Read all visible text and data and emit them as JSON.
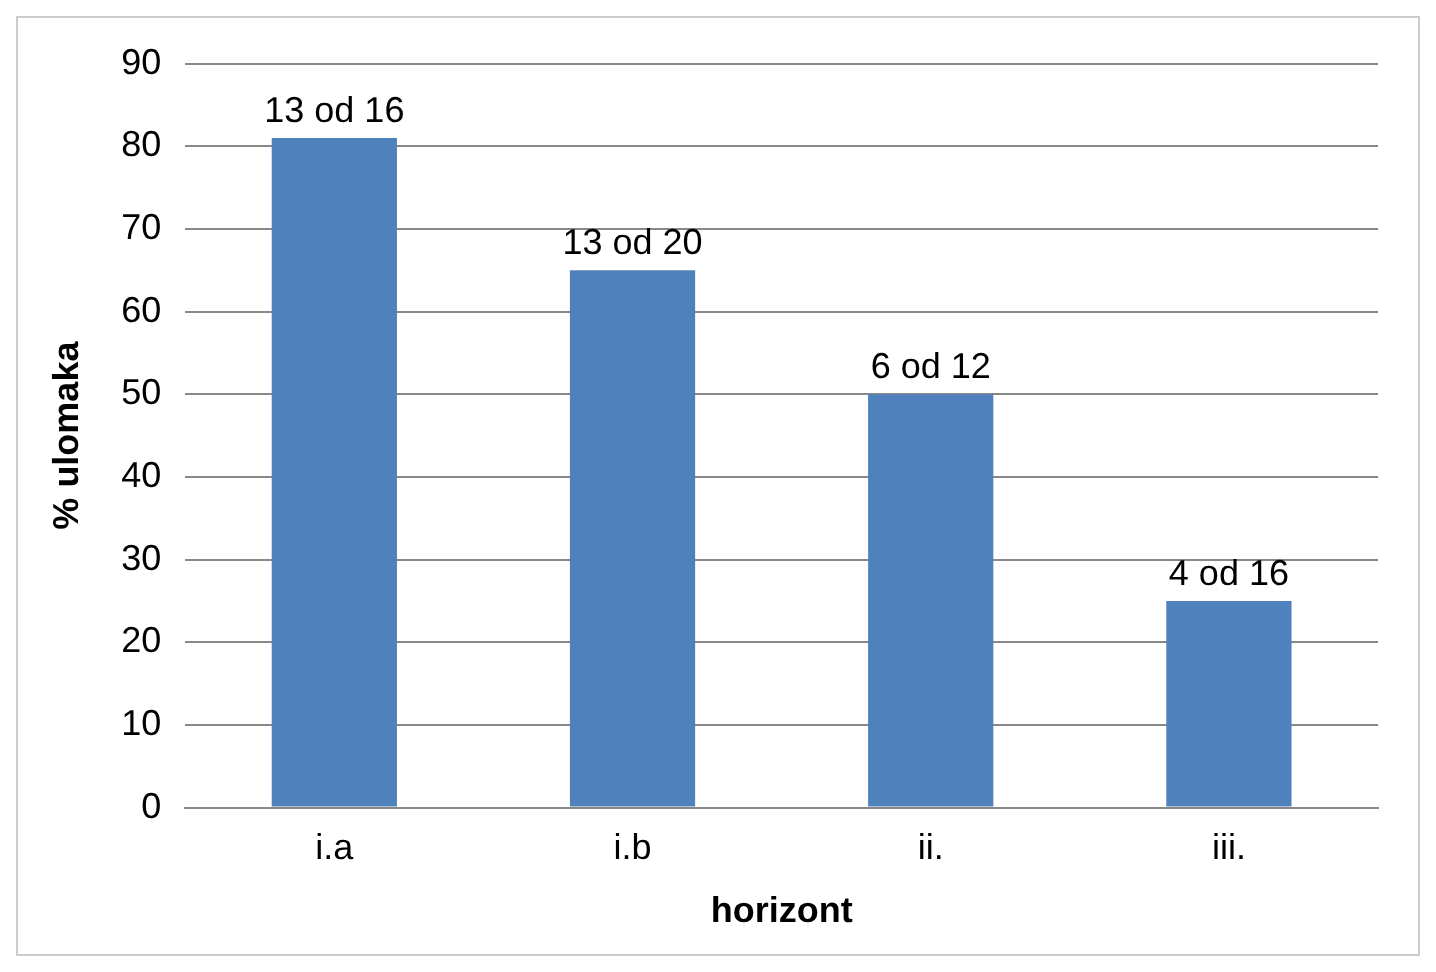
{
  "chart_data": {
    "type": "bar",
    "xlabel": "horizont",
    "ylabel": "% ulomaka",
    "categories": [
      "i.a",
      "i.b",
      "ii.",
      "iii."
    ],
    "values": [
      81,
      65,
      50,
      25
    ],
    "annotations": [
      {
        "text": "13 od 16",
        "x": "i.a",
        "y": 81
      },
      {
        "text": "13 od 20",
        "x": "i.b",
        "y": 65
      },
      {
        "text": "6 od 12",
        "x": "ii.",
        "y": 50
      },
      {
        "text": "4 od 16",
        "x": "iii.",
        "y": 25
      }
    ],
    "color": "#4f81bd",
    "ylim": [
      0,
      90
    ],
    "yticks": [
      0,
      10,
      20,
      30,
      40,
      50,
      60,
      70,
      80,
      90
    ],
    "grid": "y",
    "legend": false
  }
}
